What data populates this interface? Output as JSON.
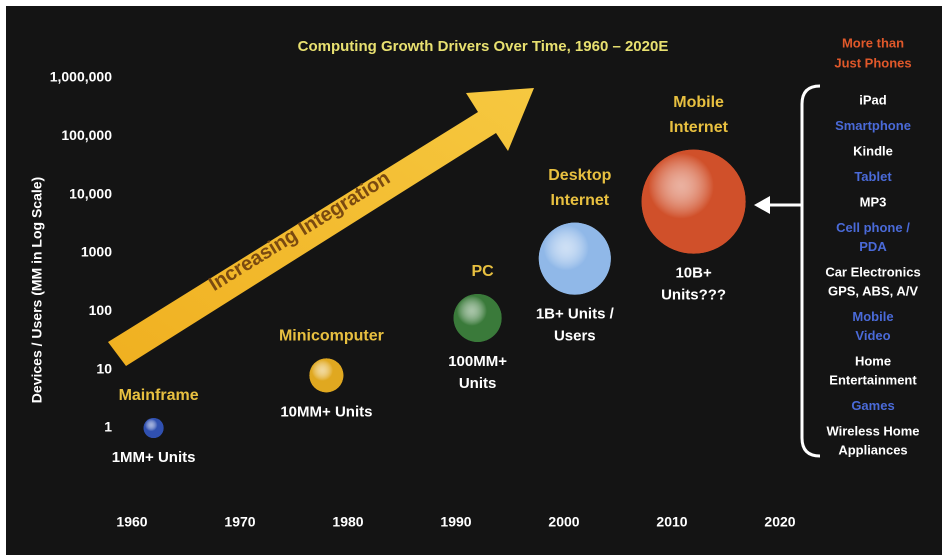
{
  "chart_data": {
    "type": "bubble",
    "title": "Computing Growth Drivers Over Time, 1960 – 2020E",
    "y_label": "Devices / Users (MM in Log Scale)",
    "log_y": true,
    "grid": false,
    "xlim": [
      1960,
      2020
    ],
    "xticks": [
      1960,
      1970,
      1980,
      1990,
      2000,
      2010,
      2020
    ],
    "ylim": [
      1,
      1000000
    ],
    "yticks": [
      1,
      10,
      100,
      1000,
      {
        "value": 10000,
        "label": "10,000"
      },
      {
        "value": 100000,
        "label": "100,000"
      },
      {
        "value": 1000000,
        "label": "1,000,000"
      }
    ],
    "annotation": "Increasing Integration",
    "points": [
      {
        "name": [
          "Mainframe"
        ],
        "note": [
          "1MM+ Units"
        ],
        "x": 1962,
        "y": 1,
        "size": 10,
        "color": "#3050b0"
      },
      {
        "name": [
          "Minicomputer"
        ],
        "note": [
          "10MM+ Units"
        ],
        "x": 1978,
        "y": 8,
        "size": 17,
        "color": "#e0a820"
      },
      {
        "name": [
          "PC"
        ],
        "note": [
          "100MM+",
          "Units"
        ],
        "x": 1992,
        "y": 77,
        "size": 24,
        "color": "#3a7a3a"
      },
      {
        "name": [
          "Desktop",
          "Internet"
        ],
        "note": [
          "1B+ Units /",
          "Users"
        ],
        "x": 2001,
        "y": 800,
        "size": 36,
        "color": "#90b8e8"
      },
      {
        "name": [
          "Mobile",
          "Internet"
        ],
        "note": [
          "10B+",
          "Units???"
        ],
        "x": 2012,
        "y": 7600,
        "size": 52,
        "color": "#d0502a"
      }
    ],
    "side_panel": {
      "title": [
        "More than",
        "Just Phones"
      ],
      "title_color": "#e0582a",
      "items": [
        {
          "lines": [
            "iPad"
          ],
          "color": "#ffffff"
        },
        {
          "lines": [
            "Smartphone"
          ],
          "color": "#4a6ad8"
        },
        {
          "lines": [
            "Kindle"
          ],
          "color": "#ffffff"
        },
        {
          "lines": [
            "Tablet"
          ],
          "color": "#4a6ad8"
        },
        {
          "lines": [
            "MP3"
          ],
          "color": "#ffffff"
        },
        {
          "lines": [
            "Cell phone /",
            "PDA"
          ],
          "color": "#4a6ad8"
        },
        {
          "lines": [
            "Car Electronics",
            "GPS, ABS, A/V"
          ],
          "color": "#ffffff"
        },
        {
          "lines": [
            "Mobile",
            "Video"
          ],
          "color": "#4a6ad8"
        },
        {
          "lines": [
            "Home",
            "Entertainment"
          ],
          "color": "#ffffff"
        },
        {
          "lines": [
            "Games"
          ],
          "color": "#4a6ad8"
        },
        {
          "lines": [
            "Wireless Home",
            "Appliances"
          ],
          "color": "#ffffff"
        }
      ]
    }
  }
}
